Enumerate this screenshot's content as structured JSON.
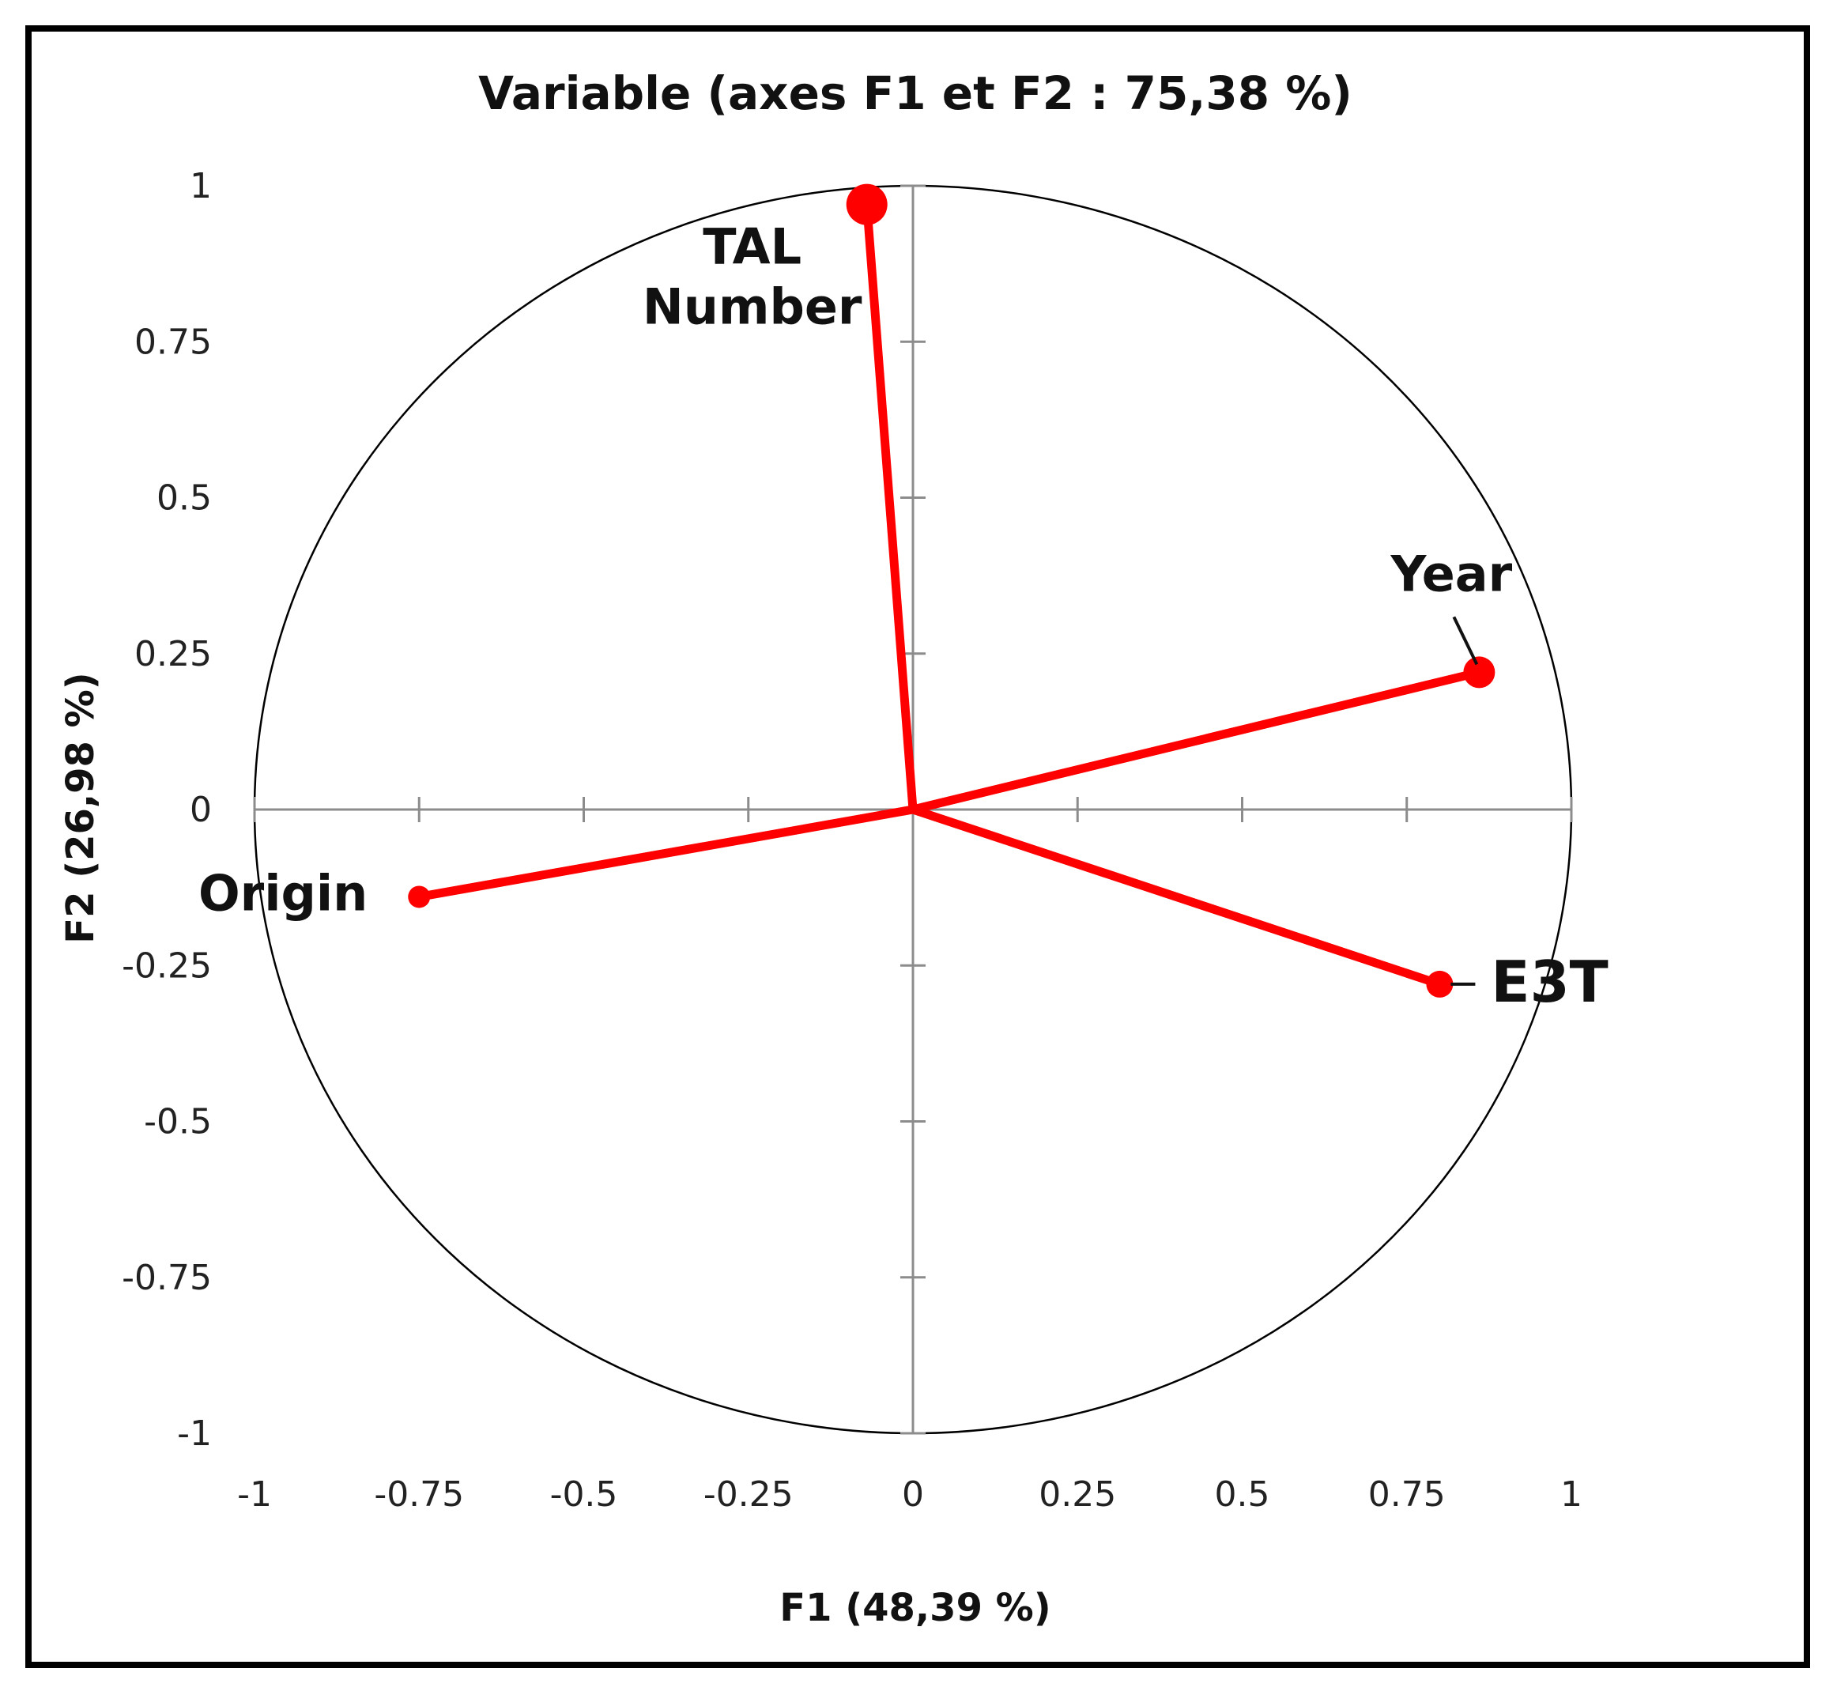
{
  "chart_data": {
    "type": "scatter",
    "title": "Variable (axes F1 et F2 : 75,38 %)",
    "xlabel": "F1 (48,39 %)",
    "ylabel": "F2 (26,98 %)",
    "xlim": [
      -1,
      1
    ],
    "ylim": [
      -1,
      1
    ],
    "x_ticks": [
      "-1",
      "-0.75",
      "-0.5",
      "-0.25",
      "0",
      "0.25",
      "0.5",
      "0.75",
      "1"
    ],
    "y_ticks": [
      "1",
      "0.75",
      "0.5",
      "0.25",
      "0",
      "-0.25",
      "-0.5",
      "-0.75",
      "-1"
    ],
    "correlation_circle": true,
    "grid": false,
    "color": "#ff0000",
    "points": [
      {
        "label": "TAL Number",
        "label_lines": [
          "TAL",
          "Number"
        ],
        "x": -0.07,
        "y": 0.97
      },
      {
        "label": "Year",
        "label_lines": [
          "Year"
        ],
        "x": 0.86,
        "y": 0.22
      },
      {
        "label": "E3T",
        "label_lines": [
          "E3T"
        ],
        "x": 0.8,
        "y": -0.28
      },
      {
        "label": "Origin",
        "label_lines": [
          "Origin"
        ],
        "x": -0.75,
        "y": -0.14
      }
    ]
  }
}
